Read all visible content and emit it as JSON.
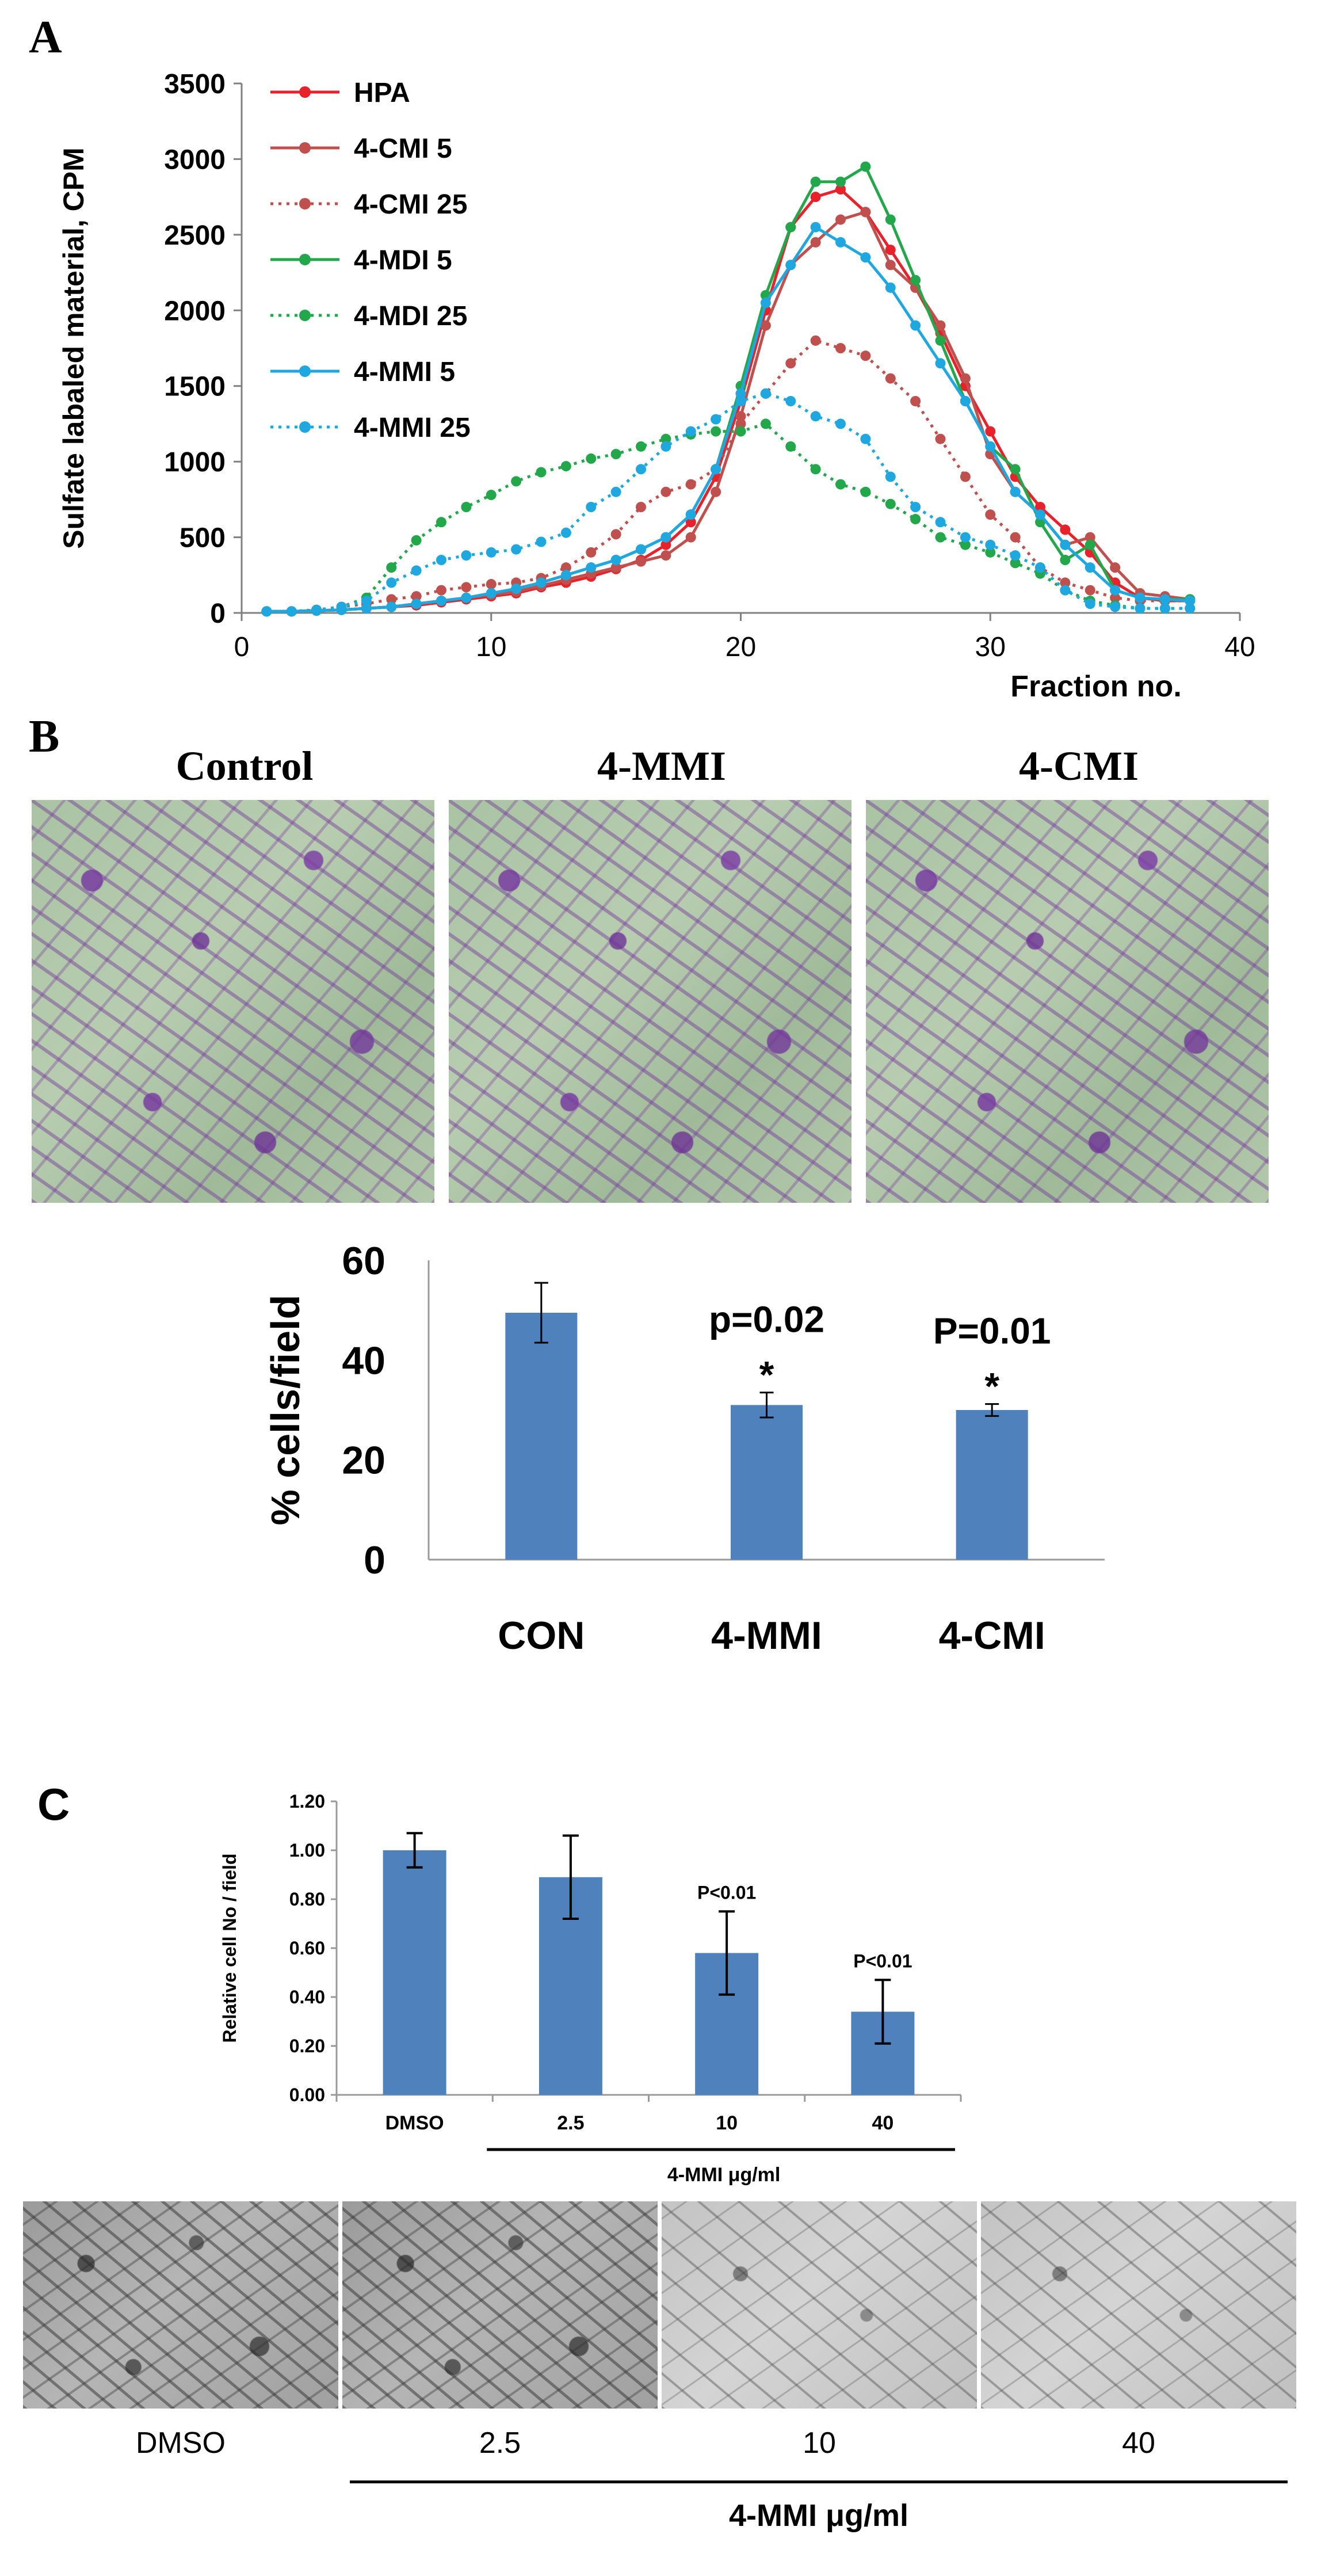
{
  "panels": {
    "a": "A",
    "b": "B",
    "c": "C"
  },
  "colors": {
    "hpa": "#e8212b",
    "cmi": "#c0504d",
    "mdi": "#22a84a",
    "mmi": "#1fa8e0",
    "bar": "#4f81bd"
  },
  "chart_data": [
    {
      "type": "line",
      "ylabel": "Sulfate labaled material, CPM",
      "xlabel": "Fraction no.",
      "xlim": [
        0,
        40
      ],
      "ylim": [
        0,
        3500
      ],
      "xticks": [
        "0",
        "10",
        "20",
        "30",
        "40"
      ],
      "yticks": [
        "0",
        "500",
        "1000",
        "1500",
        "2000",
        "2500",
        "3000",
        "3500"
      ],
      "legend_position": "top-left",
      "x": [
        1,
        2,
        3,
        4,
        5,
        6,
        7,
        8,
        9,
        10,
        11,
        12,
        13,
        14,
        15,
        16,
        17,
        18,
        19,
        20,
        21,
        22,
        23,
        24,
        25,
        26,
        27,
        28,
        29,
        30,
        31,
        32,
        33,
        34,
        35,
        36,
        37,
        38
      ],
      "series": [
        {
          "name": "HPA",
          "color": "#e8212b",
          "dash": false,
          "values": [
            10,
            10,
            15,
            20,
            30,
            40,
            50,
            70,
            90,
            110,
            130,
            170,
            200,
            240,
            290,
            350,
            450,
            600,
            900,
            1400,
            2000,
            2550,
            2750,
            2800,
            2650,
            2400,
            2150,
            1850,
            1500,
            1200,
            900,
            700,
            550,
            400,
            200,
            100,
            80,
            80
          ]
        },
        {
          "name": "4-CMI 5",
          "color": "#c0504d",
          "dash": false,
          "values": [
            10,
            10,
            15,
            20,
            30,
            40,
            60,
            80,
            100,
            120,
            140,
            180,
            220,
            260,
            300,
            340,
            380,
            500,
            800,
            1300,
            1900,
            2300,
            2450,
            2600,
            2650,
            2300,
            2150,
            1900,
            1550,
            1050,
            800,
            650,
            450,
            500,
            300,
            130,
            110,
            90
          ]
        },
        {
          "name": "4-CMI 25",
          "color": "#c0504d",
          "dash": true,
          "values": [
            10,
            10,
            20,
            40,
            60,
            90,
            110,
            150,
            170,
            190,
            200,
            230,
            300,
            400,
            520,
            700,
            800,
            850,
            950,
            1250,
            1450,
            1650,
            1800,
            1750,
            1700,
            1550,
            1400,
            1150,
            900,
            650,
            500,
            300,
            200,
            150,
            100,
            80,
            80,
            80
          ]
        },
        {
          "name": "4-MDI 5",
          "color": "#22a84a",
          "dash": false,
          "values": [
            10,
            10,
            15,
            20,
            30,
            40,
            60,
            80,
            100,
            130,
            160,
            200,
            250,
            300,
            350,
            420,
            500,
            650,
            950,
            1500,
            2100,
            2550,
            2850,
            2850,
            2950,
            2600,
            2200,
            1800,
            1400,
            1100,
            950,
            600,
            350,
            450,
            150,
            100,
            90,
            90
          ]
        },
        {
          "name": "4-MDI 25",
          "color": "#22a84a",
          "dash": true,
          "values": [
            10,
            10,
            20,
            40,
            100,
            300,
            480,
            600,
            700,
            780,
            870,
            930,
            970,
            1020,
            1050,
            1100,
            1150,
            1180,
            1200,
            1200,
            1250,
            1100,
            950,
            850,
            800,
            720,
            620,
            500,
            450,
            400,
            330,
            260,
            150,
            80,
            50,
            30,
            30,
            30
          ]
        },
        {
          "name": "4-MMI 5",
          "color": "#1fa8e0",
          "dash": false,
          "values": [
            10,
            10,
            15,
            20,
            30,
            40,
            60,
            80,
            100,
            130,
            160,
            200,
            250,
            300,
            350,
            420,
            500,
            650,
            950,
            1450,
            2050,
            2300,
            2550,
            2450,
            2350,
            2150,
            1900,
            1650,
            1400,
            1100,
            800,
            650,
            450,
            300,
            150,
            100,
            90,
            80
          ]
        },
        {
          "name": "4-MMI 25",
          "color": "#1fa8e0",
          "dash": true,
          "values": [
            10,
            10,
            20,
            40,
            80,
            200,
            280,
            350,
            380,
            400,
            420,
            470,
            530,
            700,
            800,
            950,
            1100,
            1200,
            1280,
            1400,
            1450,
            1400,
            1300,
            1250,
            1150,
            900,
            700,
            600,
            500,
            450,
            380,
            300,
            150,
            60,
            40,
            30,
            30,
            30
          ]
        }
      ]
    },
    {
      "type": "bar",
      "ylabel": "% cells/field",
      "ylim": [
        0,
        60
      ],
      "yticks": [
        "0",
        "20",
        "40",
        "60"
      ],
      "categories": [
        "CON",
        "4-MMI",
        "4-CMI"
      ],
      "values": [
        49.5,
        31,
        30
      ],
      "errors": [
        6,
        2.5,
        1.2
      ],
      "annotations": [
        {
          "category": "4-MMI",
          "p": "p=0.02",
          "star": "*"
        },
        {
          "category": "4-CMI",
          "p": "P=0.01",
          "star": "*"
        }
      ]
    },
    {
      "type": "bar",
      "ylabel": "Relative cell No / field",
      "ylim": [
        0,
        1.2
      ],
      "yticks": [
        "0.00",
        "0.20",
        "0.40",
        "0.60",
        "0.80",
        "1.00",
        "1.20"
      ],
      "categories": [
        "DMSO",
        "2.5",
        "10",
        "40"
      ],
      "values": [
        1.0,
        0.89,
        0.58,
        0.34
      ],
      "errors": [
        0.07,
        0.17,
        0.17,
        0.13
      ],
      "annotations": [
        {
          "category": "10",
          "p": "P<0.01"
        },
        {
          "category": "40",
          "p": "P<0.01"
        }
      ],
      "group_label": "4-MMI μg/ml"
    }
  ],
  "images_b": {
    "titles": [
      "Control",
      "4-MMI",
      "4-CMI"
    ]
  },
  "images_c": {
    "labels": [
      "DMSO",
      "2.5",
      "10",
      "40"
    ],
    "group_label": "4-MMI μg/ml"
  }
}
